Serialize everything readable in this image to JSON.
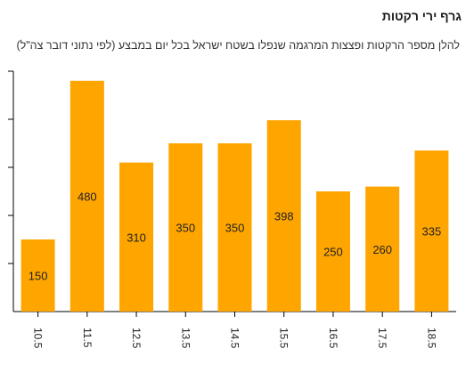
{
  "header": {
    "title": "גרף ירי רקטות",
    "subtitle": "להלן מספר הרקטות ופצצות המרגמה שנפלו בשטח ישראל בכל יום במבצע (לפי נתוני דובר צה\"ל)"
  },
  "colors": {
    "bar": "#ffa500",
    "axis": "#000000"
  },
  "chart_data": {
    "type": "bar",
    "categories": [
      "10.5",
      "11.5",
      "12.5",
      "13.5",
      "14.5",
      "15.5",
      "16.5",
      "17.5",
      "18.5"
    ],
    "values": [
      150,
      480,
      310,
      350,
      350,
      398,
      250,
      260,
      335
    ],
    "ylim": [
      0,
      500
    ],
    "grid": false,
    "title": "גרף ירי רקטות",
    "subtitle": "להלן מספר הרקטות ופצצות המרגמה שנפלו בשטח ישראל בכל יום במבצע (לפי נתוני דובר צה\"ל)"
  }
}
